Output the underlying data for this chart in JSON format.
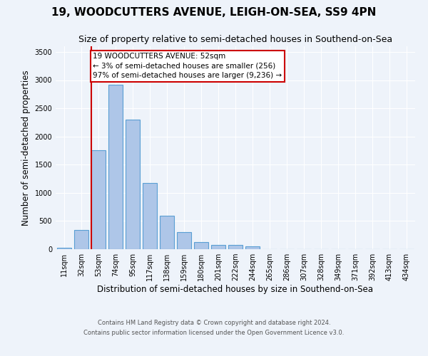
{
  "title": "19, WOODCUTTERS AVENUE, LEIGH-ON-SEA, SS9 4PN",
  "subtitle": "Size of property relative to semi-detached houses in Southend-on-Sea",
  "xlabel": "Distribution of semi-detached houses by size in Southend-on-Sea",
  "ylabel": "Number of semi-detached properties",
  "categories": [
    "11sqm",
    "32sqm",
    "53sqm",
    "74sqm",
    "95sqm",
    "117sqm",
    "138sqm",
    "159sqm",
    "180sqm",
    "201sqm",
    "222sqm",
    "244sqm",
    "265sqm",
    "286sqm",
    "307sqm",
    "328sqm",
    "349sqm",
    "371sqm",
    "392sqm",
    "413sqm",
    "434sqm"
  ],
  "values": [
    30,
    340,
    1750,
    2920,
    2300,
    1170,
    600,
    300,
    130,
    80,
    70,
    50,
    0,
    0,
    0,
    0,
    0,
    0,
    0,
    0,
    0
  ],
  "bar_color": "#aec6e8",
  "bar_edge_color": "#5a9fd4",
  "marker_bar_index": 2,
  "marker_color": "#cc0000",
  "annotation_title": "19 WOODCUTTERS AVENUE: 52sqm",
  "annotation_line1": "← 3% of semi-detached houses are smaller (256)",
  "annotation_line2": "97% of semi-detached houses are larger (9,236) →",
  "footer1": "Contains HM Land Registry data © Crown copyright and database right 2024.",
  "footer2": "Contains public sector information licensed under the Open Government Licence v3.0.",
  "ylim": [
    0,
    3600
  ],
  "yticks": [
    0,
    500,
    1000,
    1500,
    2000,
    2500,
    3000,
    3500
  ],
  "bg_color": "#eef3fa",
  "plot_bg_color": "#eef3fa",
  "grid_color": "#ffffff",
  "title_fontsize": 11,
  "subtitle_fontsize": 9,
  "axis_label_fontsize": 8.5,
  "tick_fontsize": 7,
  "footer_fontsize": 6,
  "annotation_fontsize": 7.5
}
